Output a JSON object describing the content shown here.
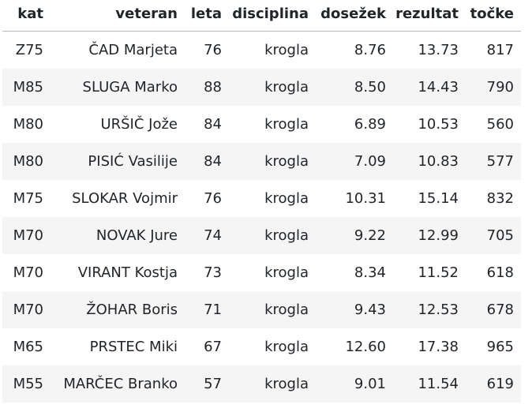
{
  "table": {
    "headers": [
      "kat",
      "veteran",
      "leta",
      "disciplina",
      "dosežek",
      "rezultat",
      "točke"
    ],
    "rows": [
      [
        "Z75",
        "ČAD Marjeta",
        "76",
        "krogla",
        "8.76",
        "13.73",
        "817"
      ],
      [
        "M85",
        "SLUGA Marko",
        "88",
        "krogla",
        "8.50",
        "14.43",
        "790"
      ],
      [
        "M80",
        "URŠIČ Jože",
        "84",
        "krogla",
        "6.89",
        "10.53",
        "560"
      ],
      [
        "M80",
        "PISIĆ Vasilije",
        "84",
        "krogla",
        "7.09",
        "10.83",
        "577"
      ],
      [
        "M75",
        "SLOKAR Vojmir",
        "76",
        "krogla",
        "10.31",
        "15.14",
        "832"
      ],
      [
        "M70",
        "NOVAK Jure",
        "74",
        "krogla",
        "9.22",
        "12.99",
        "705"
      ],
      [
        "M70",
        "VIRANT Kostja",
        "73",
        "krogla",
        "8.34",
        "11.52",
        "618"
      ],
      [
        "M70",
        "ŽOHAR Boris",
        "71",
        "krogla",
        "9.43",
        "12.53",
        "678"
      ],
      [
        "M65",
        "PRSTEC Miki",
        "67",
        "krogla",
        "12.60",
        "17.38",
        "965"
      ],
      [
        "M55",
        "MARČEC Branko",
        "57",
        "krogla",
        "9.01",
        "11.54",
        "619"
      ]
    ]
  }
}
